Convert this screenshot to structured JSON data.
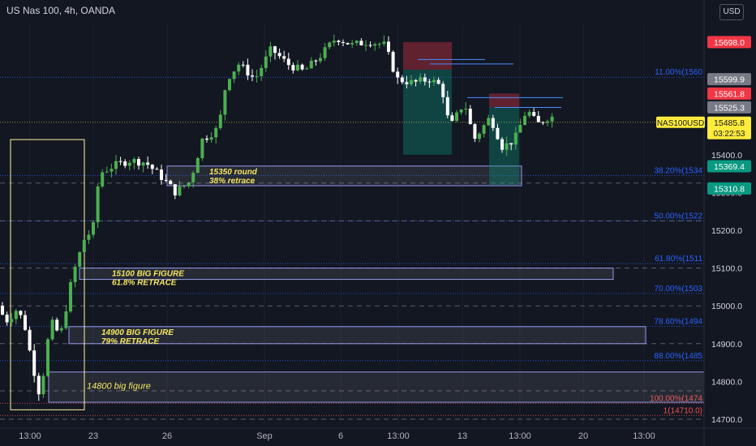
{
  "title": "US Nas 100, 4h, OANDA",
  "currency_button": "USD",
  "symbol_tag": "NAS100USD",
  "current_price": "15485.8",
  "countdown": "03:22:53",
  "colors": {
    "background": "#131722",
    "up": "#26a69a",
    "up_bright": "#4caf50",
    "down": "#ffffff",
    "fib": "#2962ff",
    "dashed": "#787b86",
    "annotation": "#f5e663",
    "red_tag": "#f23645",
    "green_tag": "#089981",
    "grey_tag": "#787b86",
    "yellow_tag": "#ffeb3b"
  },
  "chart_data": {
    "type": "candlestick",
    "x_ticks": [
      "13:00",
      "23",
      "26",
      "Sep",
      "6",
      "13:00",
      "13",
      "13:00",
      "20",
      "13:00"
    ],
    "y_ticks": [
      "15300.0",
      "15200.0",
      "15100.0",
      "15000.0",
      "14900.0",
      "14800.0",
      "14700.0"
    ],
    "ylim": [
      14685,
      15745
    ],
    "dashed_levels": [
      15325,
      15225,
      15100,
      15000,
      14900,
      14775,
      14700
    ],
    "price_tags": [
      {
        "label": "15698.0",
        "value": 15698.0,
        "style": "red"
      },
      {
        "label": "15599.9",
        "value": 15599.9,
        "style": "grey"
      },
      {
        "label": "15561.8",
        "value": 15561.8,
        "style": "red"
      },
      {
        "label": "15525.3",
        "value": 15525.3,
        "style": "grey"
      },
      {
        "label": "15369.4",
        "value": 15369.4,
        "style": "green"
      },
      {
        "label": "15310.8",
        "value": 15310.8,
        "style": "green"
      }
    ],
    "axis_labels_extra": [
      {
        "label": "15400.0",
        "value": 15400.0
      }
    ],
    "fib_levels": [
      {
        "label": "11.00%(1560",
        "value": 15605,
        "color": "#2962ff"
      },
      {
        "label": "38.20%(1534",
        "value": 15345,
        "color": "#2962ff"
      },
      {
        "label": "50.00%(1522",
        "value": 15225,
        "color": "#2962ff"
      },
      {
        "label": "61.80%(1511",
        "value": 15112,
        "color": "#2962ff"
      },
      {
        "label": "70.00%(1503",
        "value": 15033,
        "color": "#2962ff"
      },
      {
        "label": "78.60%(1494",
        "value": 14946,
        "color": "#2962ff"
      },
      {
        "label": "88.00%(1485",
        "value": 14855,
        "color": "#2962ff"
      },
      {
        "label": "100.00%(1474",
        "value": 14742,
        "color": "#ef5350"
      },
      {
        "label": "1(14710.0)",
        "value": 14710,
        "color": "#ef5350"
      }
    ],
    "zones": [
      {
        "label1": "15350 round",
        "label2": "38% retrace",
        "top": 15370,
        "bottom": 15318,
        "x_start": 206,
        "x_end": 643
      },
      {
        "label1": "15100 BIG FIGURE",
        "label2": "61.8% RETRACE",
        "top": 15100,
        "bottom": 15070,
        "x_start": 98,
        "x_end": 756
      },
      {
        "label1": "14900 BIG FIGURE",
        "label2": "79% RETRACE",
        "top": 14945,
        "bottom": 14900,
        "x_start": 85,
        "x_end": 796
      },
      {
        "label1": "14800 big figure",
        "label2": "",
        "top": 14825,
        "bottom": 14745,
        "x_start": 60,
        "x_end": 868
      }
    ]
  }
}
